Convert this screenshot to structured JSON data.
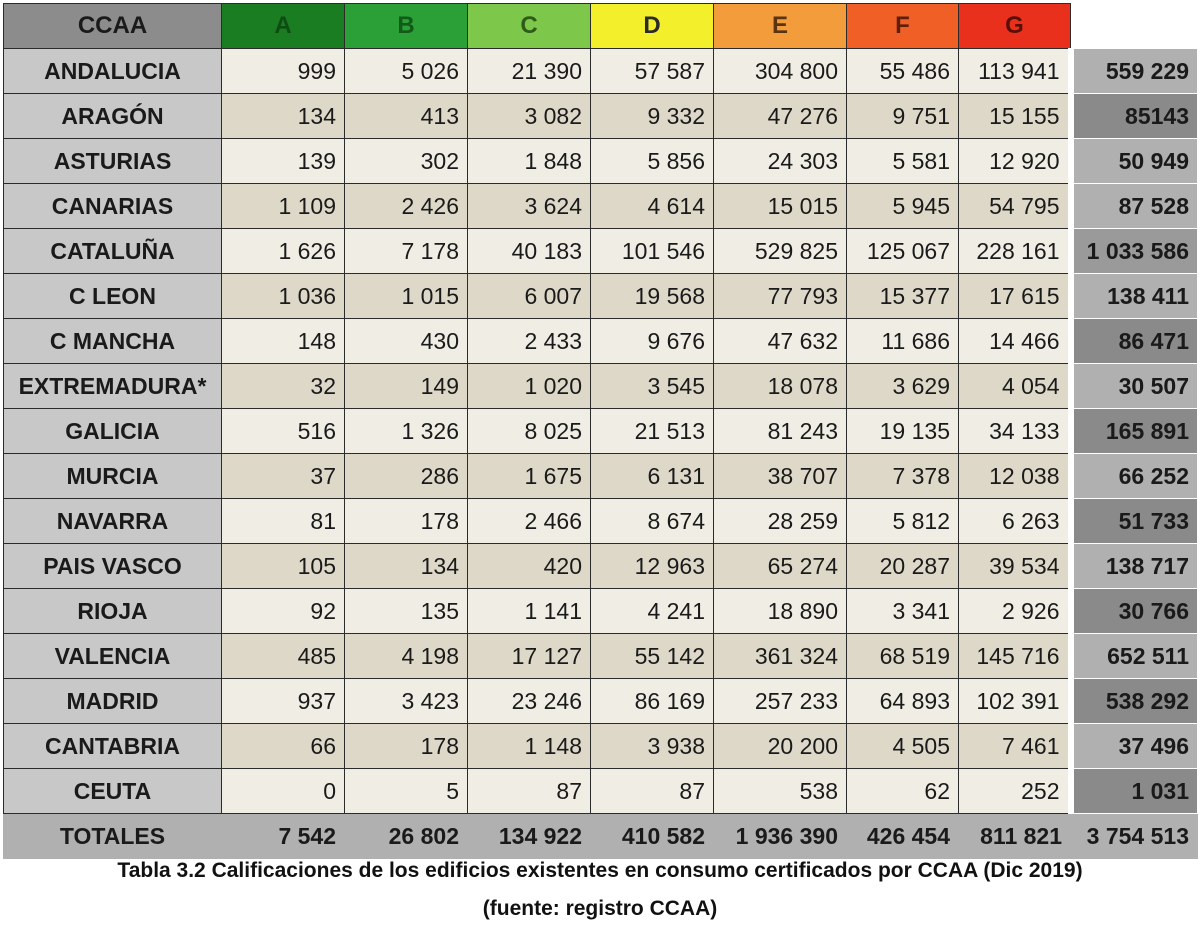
{
  "header": {
    "label": "CCAA",
    "grades": [
      {
        "label": "A",
        "bg": "#1b7d22",
        "fg": "#0e4d12"
      },
      {
        "label": "B",
        "bg": "#2aa036",
        "fg": "#135a1a"
      },
      {
        "label": "C",
        "bg": "#7dc74a",
        "fg": "#2f5a18"
      },
      {
        "label": "D",
        "bg": "#f3ef2a",
        "fg": "#2b2b2b"
      },
      {
        "label": "E",
        "bg": "#f39c3c",
        "fg": "#5a3410"
      },
      {
        "label": "F",
        "bg": "#ef5f26",
        "fg": "#5e1f08"
      },
      {
        "label": "G",
        "bg": "#e8301c",
        "fg": "#5a0f06"
      }
    ]
  },
  "rows": [
    {
      "name": "ANDALUCIA",
      "values": [
        "999",
        "5 026",
        "21 390",
        "57 587",
        "304 800",
        "55 486",
        "113 941"
      ],
      "total": "559 229",
      "total_bg": "#b0b0b0"
    },
    {
      "name": "ARAGÓN",
      "values": [
        "134",
        "413",
        "3 082",
        "9 332",
        "47 276",
        "9 751",
        "15 155"
      ],
      "total": "85143",
      "total_bg": "#8a8a8a"
    },
    {
      "name": "ASTURIAS",
      "values": [
        "139",
        "302",
        "1 848",
        "5 856",
        "24 303",
        "5 581",
        "12 920"
      ],
      "total": "50 949",
      "total_bg": "#b0b0b0"
    },
    {
      "name": "CANARIAS",
      "values": [
        "1 109",
        "2 426",
        "3 624",
        "4 614",
        "15 015",
        "5 945",
        "54 795"
      ],
      "total": "87 528",
      "total_bg": "#b0b0b0"
    },
    {
      "name": "CATALUÑA",
      "values": [
        "1 626",
        "7 178",
        "40 183",
        "101 546",
        "529 825",
        "125 067",
        "228 161"
      ],
      "total": "1 033 586",
      "total_bg": "#9a9a9a"
    },
    {
      "name": "C LEON",
      "values": [
        "1 036",
        "1 015",
        "6 007",
        "19 568",
        "77 793",
        "15 377",
        "17 615"
      ],
      "total": "138 411",
      "total_bg": "#b0b0b0"
    },
    {
      "name": "C MANCHA",
      "values": [
        "148",
        "430",
        "2 433",
        "9 676",
        "47 632",
        "11 686",
        "14 466"
      ],
      "total": "86 471",
      "total_bg": "#8a8a8a"
    },
    {
      "name": "EXTREMADURA*",
      "values": [
        "32",
        "149",
        "1 020",
        "3 545",
        "18 078",
        "3 629",
        "4 054"
      ],
      "total": "30 507",
      "total_bg": "#b0b0b0"
    },
    {
      "name": "GALICIA",
      "values": [
        "516",
        "1 326",
        "8 025",
        "21 513",
        "81 243",
        "19 135",
        "34 133"
      ],
      "total": "165 891",
      "total_bg": "#8a8a8a"
    },
    {
      "name": "MURCIA",
      "values": [
        "37",
        "286",
        "1 675",
        "6 131",
        "38 707",
        "7 378",
        "12 038"
      ],
      "total": "66 252",
      "total_bg": "#b0b0b0"
    },
    {
      "name": "NAVARRA",
      "values": [
        "81",
        "178",
        "2 466",
        "8 674",
        "28 259",
        "5 812",
        "6 263"
      ],
      "total": "51 733",
      "total_bg": "#8a8a8a"
    },
    {
      "name": "PAIS VASCO",
      "values": [
        "105",
        "134",
        "420",
        "12 963",
        "65 274",
        "20 287",
        "39 534"
      ],
      "total": "138 717",
      "total_bg": "#b0b0b0"
    },
    {
      "name": "RIOJA",
      "values": [
        "92",
        "135",
        "1 141",
        "4 241",
        "18 890",
        "3 341",
        "2 926"
      ],
      "total": "30 766",
      "total_bg": "#8a8a8a"
    },
    {
      "name": "VALENCIA",
      "values": [
        "485",
        "4 198",
        "17 127",
        "55 142",
        "361 324",
        "68 519",
        "145 716"
      ],
      "total": "652 511",
      "total_bg": "#b0b0b0"
    },
    {
      "name": "MADRID",
      "values": [
        "937",
        "3 423",
        "23 246",
        "86 169",
        "257 233",
        "64 893",
        "102 391"
      ],
      "total": "538 292",
      "total_bg": "#8a8a8a"
    },
    {
      "name": "CANTABRIA",
      "values": [
        "66",
        "178",
        "1 148",
        "3 938",
        "20 200",
        "4 505",
        "7 461"
      ],
      "total": "37 496",
      "total_bg": "#b0b0b0"
    },
    {
      "name": "CEUTA",
      "values": [
        "0",
        "5",
        "87",
        "87",
        "538",
        "62",
        "252"
      ],
      "total": "1 031",
      "total_bg": "#8a8a8a"
    }
  ],
  "totals": {
    "label": "TOTALES",
    "values": [
      "7 542",
      "26 802",
      "134 922",
      "410 582",
      "1 936 390",
      "426 454",
      "811 821"
    ],
    "total": "3 754 513"
  },
  "caption": {
    "line1": "Tabla 3.2 Calificaciones de los edificios existentes en consumo certificados por CCAA (Dic 2019)",
    "line2": "(fuente: registro CCAA)"
  }
}
